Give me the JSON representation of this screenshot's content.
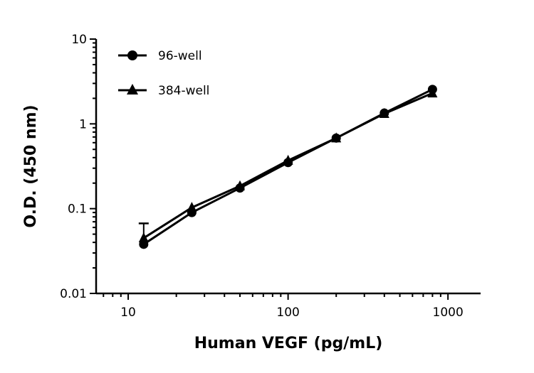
{
  "chart_data": {
    "type": "line",
    "title": "",
    "xlabel": "Human VEGF (pg/mL)",
    "ylabel": "O.D. (450 nm)",
    "xscale": "log",
    "yscale": "log",
    "xlim": [
      6.3,
      1600
    ],
    "ylim": [
      0.01,
      10
    ],
    "xticks": [
      10,
      100,
      1000
    ],
    "xtick_labels": [
      "10",
      "100",
      "1000"
    ],
    "yticks": [
      0.01,
      0.1,
      1,
      10
    ],
    "ytick_labels": [
      "0.01",
      "0.1",
      "1",
      "10"
    ],
    "grid": false,
    "legend_position": "top-left",
    "x": [
      12.5,
      25,
      50,
      100,
      200,
      400,
      800
    ],
    "series": [
      {
        "name": "96-well",
        "marker": "circle",
        "color": "#000000",
        "values": [
          0.038,
          0.09,
          0.175,
          0.35,
          0.68,
          1.34,
          2.55
        ]
      },
      {
        "name": "384-well",
        "marker": "triangle",
        "color": "#000000",
        "values": [
          0.045,
          0.103,
          0.185,
          0.37,
          0.68,
          1.32,
          2.3
        ],
        "error_upper": [
          0.067,
          null,
          null,
          null,
          null,
          null,
          null
        ]
      }
    ]
  }
}
